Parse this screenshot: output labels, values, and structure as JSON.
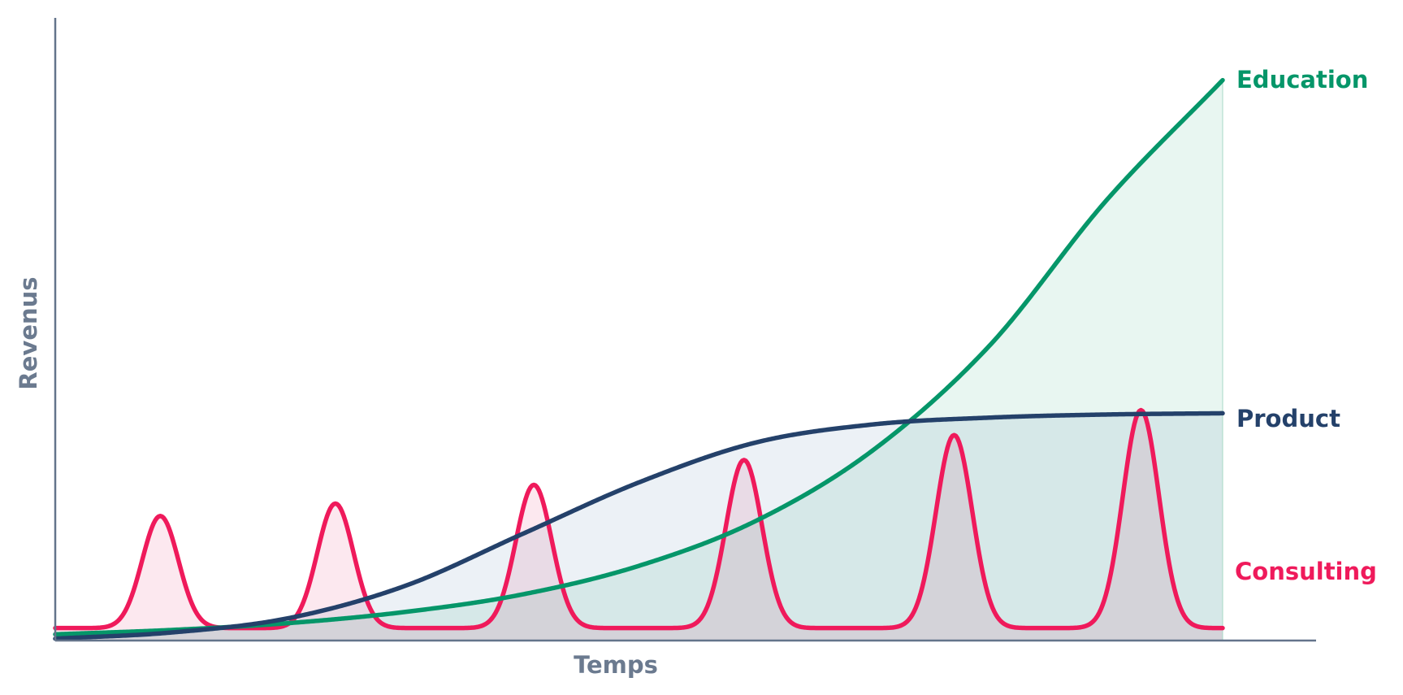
{
  "chart_data": {
    "type": "area",
    "xlabel": "Temps",
    "ylabel": "Revenus",
    "xlim": [
      0,
      100
    ],
    "ylim": [
      0,
      100
    ],
    "grid": false,
    "legend": "inline labels at right end of each series",
    "series": [
      {
        "name": "Consulting",
        "color": "#ef1a5b",
        "fill_color": "#fbe4ec",
        "kind": "pulses",
        "baseline": 2,
        "pulses": [
          {
            "x": 9,
            "y": 20,
            "width": 1.55
          },
          {
            "x": 24,
            "y": 22,
            "width": 1.55
          },
          {
            "x": 41,
            "y": 25,
            "width": 1.55
          },
          {
            "x": 59,
            "y": 29,
            "width": 1.55
          },
          {
            "x": 77,
            "y": 33,
            "width": 1.55
          },
          {
            "x": 93,
            "y": 37,
            "width": 1.55
          }
        ]
      },
      {
        "name": "Product",
        "color": "#24416a",
        "fill_color": "#e9eef4",
        "kind": "points",
        "x": [
          0,
          10,
          20,
          30,
          40,
          50,
          60,
          70,
          80,
          90,
          100
        ],
        "y": [
          0.3,
          1.3,
          3.6,
          8.8,
          17.1,
          25.4,
          31.8,
          34.7,
          35.8,
          36.3,
          36.5
        ]
      },
      {
        "name": "Education",
        "color": "#059669",
        "fill_color": "#e4f4ee",
        "kind": "points",
        "x": [
          0,
          10,
          20,
          30,
          40,
          50,
          60,
          70,
          80,
          90,
          100
        ],
        "y": [
          1.0,
          1.7,
          2.8,
          4.6,
          7.4,
          12.0,
          19.2,
          30.5,
          47.3,
          70.6,
          90.0
        ]
      }
    ],
    "labels": {
      "consulting": "Consulting",
      "product": "Product",
      "education": "Education"
    }
  }
}
